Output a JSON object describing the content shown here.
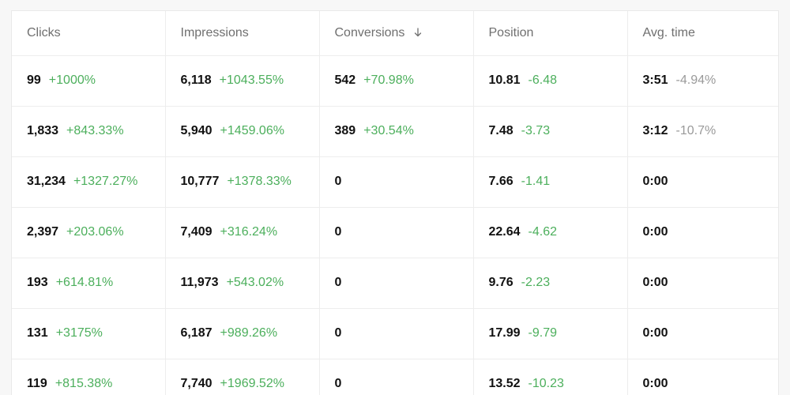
{
  "colors": {
    "positive_change": "#4caf5c",
    "muted_change": "#9a9a9a",
    "header_text": "#6f6f6f",
    "value_text": "#111111"
  },
  "table": {
    "columns": [
      {
        "label": "Clicks"
      },
      {
        "label": "Impressions"
      },
      {
        "label": "Conversions",
        "sort_icon": "arrow-down-icon"
      },
      {
        "label": "Position"
      },
      {
        "label": "Avg. time"
      }
    ],
    "rows": [
      {
        "clicks": {
          "value": "99",
          "change": "+1000%"
        },
        "impressions": {
          "value": "6,118",
          "change": "+1043.55%"
        },
        "conversions": {
          "value": "542",
          "change": "+70.98%"
        },
        "position": {
          "value": "10.81",
          "change": "-6.48"
        },
        "avg_time": {
          "value": "3:51",
          "change": "-4.94%"
        }
      },
      {
        "clicks": {
          "value": "1,833",
          "change": "+843.33%"
        },
        "impressions": {
          "value": "5,940",
          "change": "+1459.06%"
        },
        "conversions": {
          "value": "389",
          "change": "+30.54%"
        },
        "position": {
          "value": "7.48",
          "change": "-3.73"
        },
        "avg_time": {
          "value": "3:12",
          "change": "-10.7%"
        }
      },
      {
        "clicks": {
          "value": "31,234",
          "change": "+1327.27%"
        },
        "impressions": {
          "value": "10,777",
          "change": "+1378.33%"
        },
        "conversions": {
          "value": "0",
          "change": ""
        },
        "position": {
          "value": "7.66",
          "change": "-1.41"
        },
        "avg_time": {
          "value": "0:00",
          "change": ""
        }
      },
      {
        "clicks": {
          "value": "2,397",
          "change": "+203.06%"
        },
        "impressions": {
          "value": "7,409",
          "change": "+316.24%"
        },
        "conversions": {
          "value": "0",
          "change": ""
        },
        "position": {
          "value": "22.64",
          "change": "-4.62"
        },
        "avg_time": {
          "value": "0:00",
          "change": ""
        }
      },
      {
        "clicks": {
          "value": "193",
          "change": "+614.81%"
        },
        "impressions": {
          "value": "11,973",
          "change": "+543.02%"
        },
        "conversions": {
          "value": "0",
          "change": ""
        },
        "position": {
          "value": "9.76",
          "change": "-2.23"
        },
        "avg_time": {
          "value": "0:00",
          "change": ""
        }
      },
      {
        "clicks": {
          "value": "131",
          "change": "+3175%"
        },
        "impressions": {
          "value": "6,187",
          "change": "+989.26%"
        },
        "conversions": {
          "value": "0",
          "change": ""
        },
        "position": {
          "value": "17.99",
          "change": "-9.79"
        },
        "avg_time": {
          "value": "0:00",
          "change": ""
        }
      },
      {
        "clicks": {
          "value": "119",
          "change": "+815.38%"
        },
        "impressions": {
          "value": "7,740",
          "change": "+1969.52%"
        },
        "conversions": {
          "value": "0",
          "change": ""
        },
        "position": {
          "value": "13.52",
          "change": "-10.23"
        },
        "avg_time": {
          "value": "0:00",
          "change": ""
        }
      }
    ]
  }
}
